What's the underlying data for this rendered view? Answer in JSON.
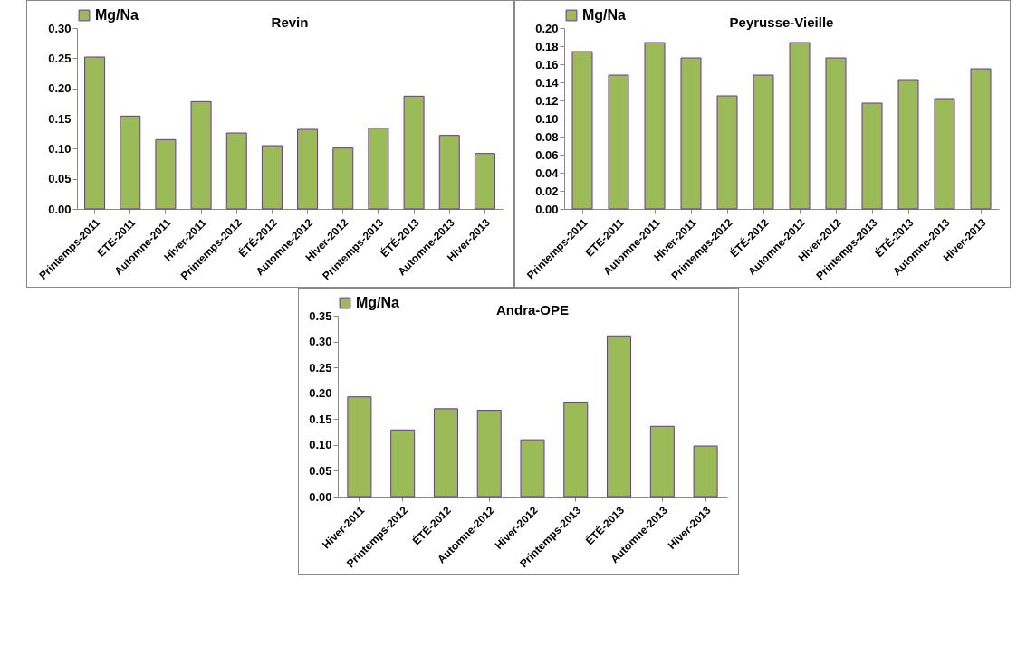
{
  "chart_data": [
    {
      "type": "bar",
      "title": "Revin",
      "categories": [
        "Printemps-2011",
        "ETE-2011",
        "Automne-2011",
        "Hiver-2011",
        "Printemps-2012",
        "ÉTÉ-2012",
        "Automne-2012",
        "Hiver-2012",
        "Printemps-2013",
        "ÉTÉ-2013",
        "Automne-2013",
        "Hiver-2013"
      ],
      "series": [
        {
          "name": "Mg/Na",
          "color": "#9bbb59",
          "values": [
            0.252,
            0.154,
            0.115,
            0.178,
            0.126,
            0.105,
            0.132,
            0.101,
            0.134,
            0.187,
            0.122,
            0.092
          ]
        }
      ],
      "ylim": [
        0,
        0.3
      ],
      "yticks": [
        {
          "value": 0,
          "label": "0.00"
        },
        {
          "value": 0.05,
          "label": "0.05"
        },
        {
          "value": 0.1,
          "label": "0.10"
        },
        {
          "value": 0.15,
          "label": "0.15"
        },
        {
          "value": 0.2,
          "label": "0.20"
        },
        {
          "value": 0.25,
          "label": "0.25"
        },
        {
          "value": 0.3,
          "label": "0.30"
        }
      ],
      "legend": "top",
      "grid": false
    },
    {
      "type": "bar",
      "title": "Peyrusse-Vieille",
      "categories": [
        "Printemps-2011",
        "ETE-2011",
        "Automne-2011",
        "Hiver-2011",
        "Printemps-2012",
        "ÉTÉ-2012",
        "Automne-2012",
        "Hiver-2012",
        "Printemps-2013",
        "ÉTÉ-2013",
        "Automne-2013",
        "Hiver-2013"
      ],
      "series": [
        {
          "name": "Mg/Na",
          "color": "#9bbb59",
          "values": [
            0.174,
            0.148,
            0.184,
            0.167,
            0.125,
            0.148,
            0.184,
            0.167,
            0.117,
            0.143,
            0.122,
            0.155
          ]
        }
      ],
      "ylim": [
        0,
        0.2
      ],
      "yticks": [
        {
          "value": 0,
          "label": "0.00"
        },
        {
          "value": 0.02,
          "label": "0.02"
        },
        {
          "value": 0.04,
          "label": "0.04"
        },
        {
          "value": 0.06,
          "label": "0.06"
        },
        {
          "value": 0.08,
          "label": "0.08"
        },
        {
          "value": 0.1,
          "label": "0.10"
        },
        {
          "value": 0.12,
          "label": "0.12"
        },
        {
          "value": 0.14,
          "label": "0.14"
        },
        {
          "value": 0.16,
          "label": "0.16"
        },
        {
          "value": 0.18,
          "label": "0.18"
        },
        {
          "value": 0.2,
          "label": "0.20"
        }
      ],
      "legend": "top",
      "grid": false
    },
    {
      "type": "bar",
      "title": "Andra-OPE",
      "categories": [
        "Hiver-2011",
        "Printemps-2012",
        "ÉTÉ-2012",
        "Automne-2012",
        "Hiver-2012",
        "Printemps-2013",
        "ÉTÉ-2013",
        "Automne-2013",
        "Hiver-2013"
      ],
      "series": [
        {
          "name": "Mg/Na",
          "color": "#9bbb59",
          "values": [
            0.193,
            0.129,
            0.17,
            0.167,
            0.11,
            0.183,
            0.311,
            0.136,
            0.098
          ]
        }
      ],
      "ylim": [
        0,
        0.35
      ],
      "yticks": [
        {
          "value": 0,
          "label": "0.00"
        },
        {
          "value": 0.05,
          "label": "0.05"
        },
        {
          "value": 0.1,
          "label": "0.10"
        },
        {
          "value": 0.15,
          "label": "0.15"
        },
        {
          "value": 0.2,
          "label": "0.20"
        },
        {
          "value": 0.25,
          "label": "0.25"
        },
        {
          "value": 0.3,
          "label": "0.30"
        },
        {
          "value": 0.35,
          "label": "0.35"
        }
      ],
      "legend": "top",
      "grid": false
    }
  ]
}
